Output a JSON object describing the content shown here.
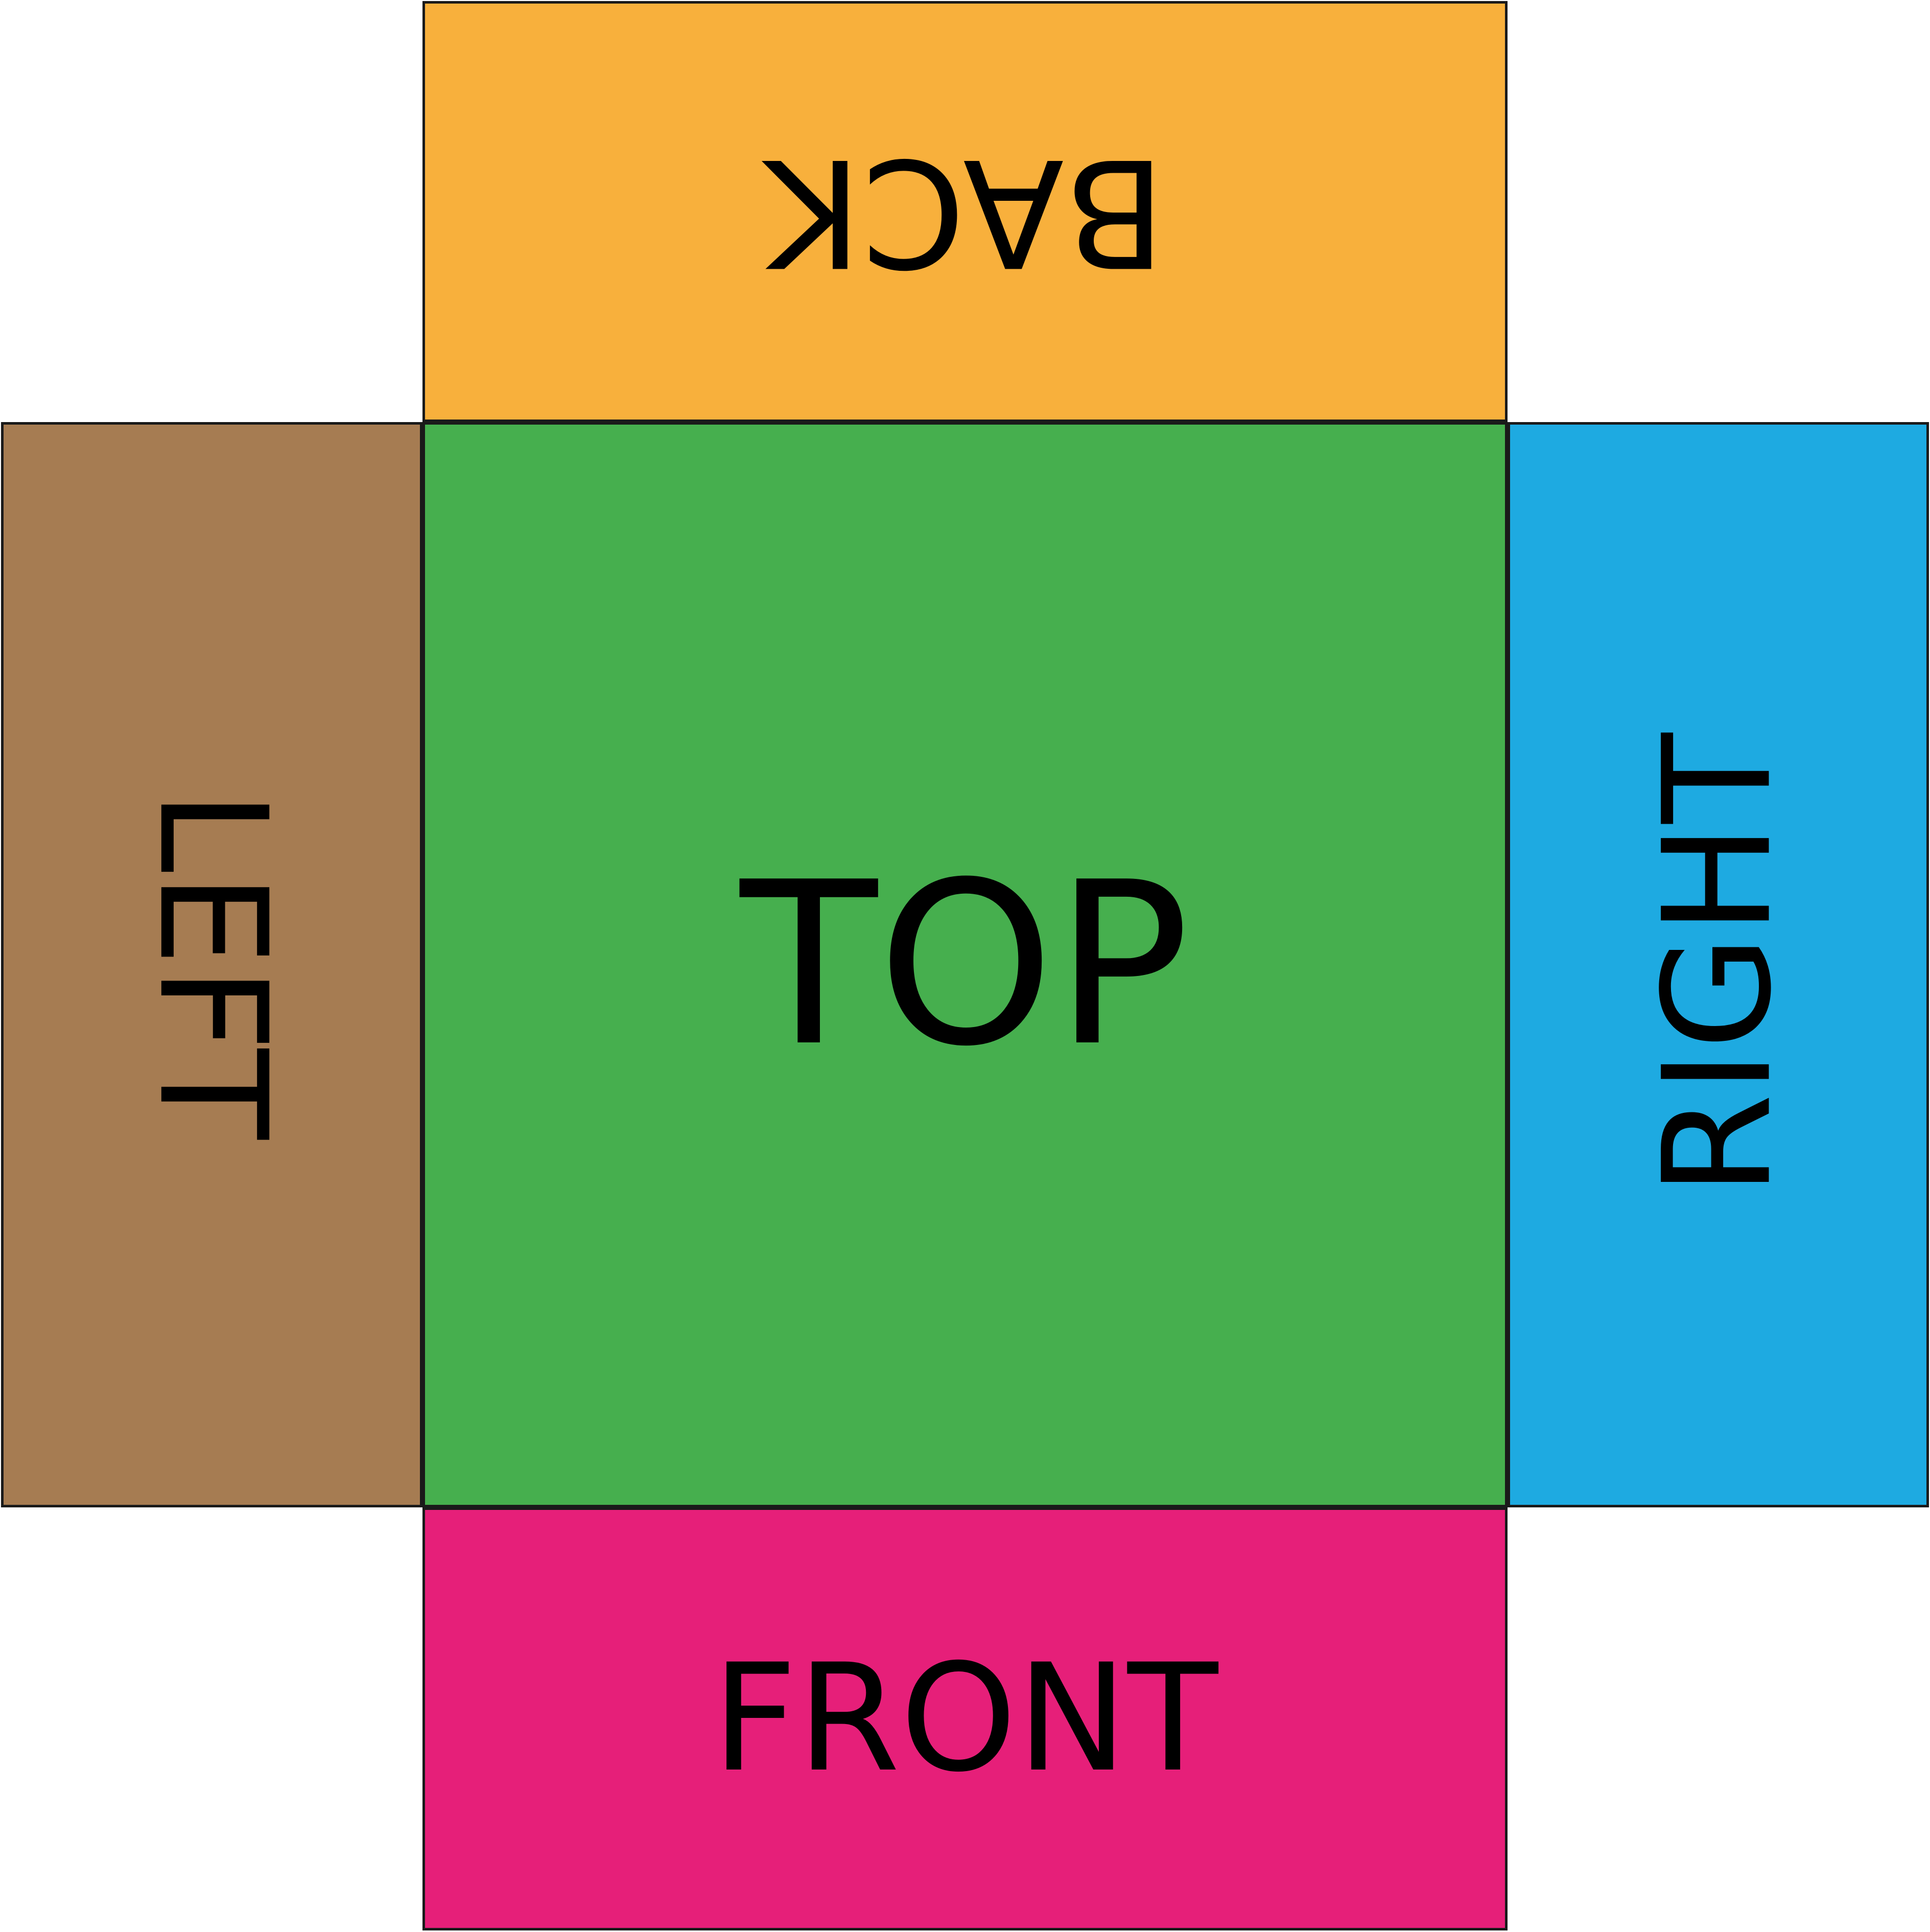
{
  "net": {
    "back": {
      "label": "BACK",
      "color": "#F8B03C"
    },
    "left": {
      "label": "LEFT",
      "color": "#A67C52"
    },
    "top": {
      "label": "TOP",
      "color": "#46AF4E"
    },
    "right": {
      "label": "RIGHT",
      "color": "#1EAAE1"
    },
    "front": {
      "label": "FRONT",
      "color": "#E61F79"
    }
  }
}
